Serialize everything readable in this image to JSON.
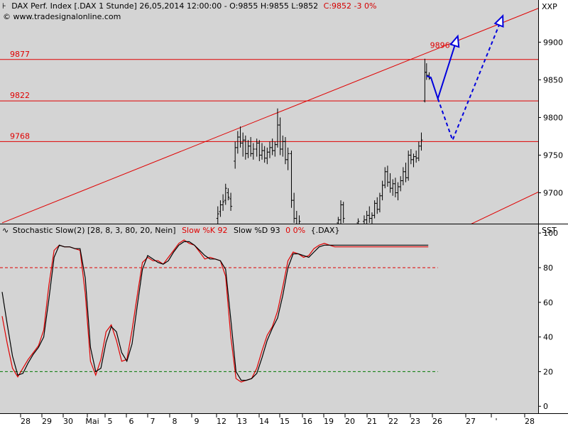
{
  "header": {
    "icon": "price-chart-icon",
    "title": "DAX Perf. Index [.DAX  1 Stunde] 26,05,2014 12:00:00 - O:9855 H:9855 L:9852",
    "change": "C:9852 -3 0%",
    "change_color": "#d40000",
    "source": "© www.tradesignalonline.com",
    "axis_code": "XXP"
  },
  "indicator_header": {
    "icon": "oscillator-icon",
    "name": "Stochastic Slow(2) [28, 8, 3, 80, 20, Nein]",
    "k_label": "Slow %K 92",
    "d_label": "Slow %D 93",
    "d_change": "0 0%",
    "instrument": "{.DAX}",
    "axis_code": "SST"
  },
  "colors": {
    "panel_bg": "#d4d4d4",
    "level_lines": "#e00000",
    "forecast": "#0000dd",
    "k_line": "#e00000",
    "d_line": "#000000",
    "upper_band": "#e00000",
    "lower_band": "#007700"
  },
  "x_axis": {
    "labels": [
      "28",
      "29",
      "30",
      "Mai",
      "5",
      "6",
      "7",
      "8",
      "9",
      "12",
      "13",
      "14",
      "15",
      "16",
      "19",
      "20",
      "21",
      "22",
      "23",
      "26",
      "27",
      "'",
      "28"
    ]
  },
  "chart_data": [
    {
      "type": "ohlc-bar",
      "title": "DAX Perf. Index [.DAX  1 Stunde]",
      "y_ticks": [
        9700,
        9750,
        9800,
        9850,
        9900
      ],
      "ylim": [
        9659,
        9956
      ],
      "grid": false,
      "levels": [
        {
          "label": "9877",
          "value": 9877
        },
        {
          "label": "9822",
          "value": 9822
        },
        {
          "label": "9768",
          "value": 9768
        }
      ],
      "peak_label": {
        "label": "9896",
        "value": 9896
      },
      "trendlines": [
        {
          "name": "upper",
          "x": [
            0,
            63
          ],
          "y": [
            9660,
            9950
          ]
        },
        {
          "name": "lower",
          "x": [
            53.5,
            63
          ],
          "y": [
            9655,
            9707
          ]
        }
      ],
      "forecast_paths": [
        {
          "style": "solid",
          "x": [
            49.0,
            49.5,
            50.3,
            52.6
          ],
          "y": [
            9855,
            9853,
            9825,
            9908
          ]
        },
        {
          "style": "dashed",
          "x": [
            50.3,
            52.0,
            57.8
          ],
          "y": [
            9825,
            9770,
            9935
          ]
        }
      ],
      "bars": [
        [
          24.9,
          9666,
          9682,
          9654,
          9672
        ],
        [
          25.2,
          9675,
          9690,
          9668,
          9684
        ],
        [
          25.5,
          9684,
          9698,
          9676,
          9688
        ],
        [
          25.8,
          9690,
          9712,
          9684,
          9706
        ],
        [
          26.1,
          9700,
          9706,
          9690,
          9694
        ],
        [
          26.4,
          9692,
          9700,
          9676,
          9682
        ],
        [
          26.9,
          9742,
          9768,
          9732,
          9760
        ],
        [
          27.2,
          9760,
          9782,
          9752,
          9774
        ],
        [
          27.5,
          9774,
          9788,
          9760,
          9766
        ],
        [
          27.8,
          9766,
          9780,
          9748,
          9770
        ],
        [
          28.1,
          9770,
          9776,
          9744,
          9752
        ],
        [
          28.4,
          9752,
          9770,
          9746,
          9762
        ],
        [
          28.7,
          9762,
          9774,
          9748,
          9752
        ],
        [
          29.0,
          9752,
          9766,
          9744,
          9758
        ],
        [
          29.4,
          9758,
          9772,
          9748,
          9766
        ],
        [
          29.7,
          9766,
          9770,
          9742,
          9750
        ],
        [
          30.0,
          9750,
          9766,
          9744,
          9756
        ],
        [
          30.3,
          9756,
          9762,
          9740,
          9746
        ],
        [
          30.6,
          9746,
          9760,
          9738,
          9754
        ],
        [
          30.9,
          9754,
          9768,
          9746,
          9760
        ],
        [
          31.2,
          9760,
          9772,
          9750,
          9756
        ],
        [
          31.5,
          9756,
          9768,
          9748,
          9764
        ],
        [
          31.8,
          9764,
          9812,
          9760,
          9790
        ],
        [
          32.1,
          9790,
          9800,
          9750,
          9758
        ],
        [
          32.4,
          9758,
          9776,
          9748,
          9768
        ],
        [
          32.7,
          9768,
          9774,
          9738,
          9744
        ],
        [
          33.0,
          9744,
          9760,
          9730,
          9752
        ],
        [
          33.4,
          9752,
          9756,
          9680,
          9690
        ],
        [
          33.7,
          9690,
          9700,
          9660,
          9666
        ],
        [
          34.0,
          9666,
          9676,
          9648,
          9658
        ],
        [
          34.3,
          9658,
          9670,
          9650,
          9662
        ],
        [
          38.8,
          9660,
          9668,
          9650,
          9664
        ],
        [
          39.1,
          9664,
          9690,
          9658,
          9684
        ],
        [
          39.4,
          9684,
          9688,
          9660,
          9666
        ],
        [
          41.1,
          9660,
          9666,
          9652,
          9662
        ],
        [
          41.8,
          9662,
          9670,
          9654,
          9664
        ],
        [
          42.1,
          9664,
          9676,
          9658,
          9670
        ],
        [
          42.4,
          9670,
          9682,
          9660,
          9666
        ],
        [
          42.7,
          9666,
          9674,
          9656,
          9670
        ],
        [
          43.0,
          9670,
          9690,
          9666,
          9686
        ],
        [
          43.3,
          9686,
          9694,
          9672,
          9678
        ],
        [
          43.6,
          9678,
          9700,
          9674,
          9696
        ],
        [
          43.9,
          9696,
          9716,
          9690,
          9710
        ],
        [
          44.2,
          9710,
          9734,
          9706,
          9728
        ],
        [
          44.5,
          9728,
          9736,
          9708,
          9714
        ],
        [
          44.8,
          9714,
          9726,
          9700,
          9706
        ],
        [
          45.1,
          9706,
          9718,
          9696,
          9712
        ],
        [
          45.4,
          9712,
          9720,
          9694,
          9700
        ],
        [
          45.7,
          9700,
          9714,
          9690,
          9708
        ],
        [
          46.0,
          9708,
          9722,
          9702,
          9716
        ],
        [
          46.3,
          9716,
          9734,
          9710,
          9728
        ],
        [
          46.6,
          9728,
          9740,
          9714,
          9720
        ],
        [
          46.9,
          9720,
          9756,
          9716,
          9750
        ],
        [
          47.2,
          9750,
          9758,
          9738,
          9744
        ],
        [
          47.5,
          9744,
          9752,
          9734,
          9748
        ],
        [
          47.8,
          9748,
          9756,
          9740,
          9746
        ],
        [
          48.1,
          9746,
          9768,
          9742,
          9762
        ],
        [
          48.4,
          9762,
          9780,
          9756,
          9770
        ],
        [
          48.8,
          9822,
          9878,
          9820,
          9860
        ],
        [
          49.0,
          9860,
          9872,
          9850,
          9856
        ],
        [
          49.3,
          9856,
          9860,
          9850,
          9852
        ]
      ]
    },
    {
      "type": "line",
      "title": "Stochastic Slow(2) [28, 8, 3, 80, 20, Nein]",
      "y_ticks": [
        0,
        20,
        40,
        60,
        80,
        100
      ],
      "ylim": [
        -4,
        105
      ],
      "grid": false,
      "bands": [
        {
          "value": 80,
          "style": "dashed",
          "color": "#e00000"
        },
        {
          "value": 20,
          "style": "dashed",
          "color": "#007700"
        }
      ],
      "series": [
        {
          "name": "Slow %K",
          "color": "#e00000",
          "x": [
            0,
            0.6,
            1.2,
            1.8,
            2.4,
            3,
            3.6,
            4.2,
            4.8,
            5.4,
            6,
            6.6,
            7.2,
            7.8,
            8.4,
            9,
            9.6,
            10.2,
            10.8,
            11.4,
            12,
            12.6,
            13.2,
            13.8,
            14.4,
            15,
            15.6,
            16.2,
            16.8,
            17.4,
            18,
            18.6,
            19.2,
            19.8,
            20.4,
            21,
            21.6,
            22.2,
            22.8,
            23.4,
            24,
            24.6,
            25.2,
            25.8,
            26.4,
            27,
            27.6,
            28.2,
            28.8,
            29.4,
            30,
            30.6,
            31.2,
            31.8,
            32.4,
            33,
            33.6,
            34.2,
            34.8,
            35.4,
            36,
            36.6,
            37.2,
            37.8,
            38.4,
            39,
            39.6,
            40.2,
            40.8,
            41.4,
            42,
            42.6,
            43.2,
            43.8,
            44.4,
            45,
            45.6,
            46.2,
            46.8,
            47.4,
            48,
            48.6,
            49.2
          ],
          "y": [
            52,
            36,
            22,
            17,
            22,
            27,
            31,
            35,
            44,
            70,
            90,
            93,
            92,
            92,
            91,
            90,
            65,
            26,
            18,
            27,
            43,
            47,
            38,
            26,
            27,
            44,
            64,
            83,
            86,
            84,
            84,
            82,
            86,
            90,
            94,
            96,
            94,
            93,
            89,
            85,
            86,
            85,
            84,
            75,
            40,
            16,
            14,
            15,
            16,
            22,
            32,
            41,
            46,
            55,
            69,
            84,
            89,
            88,
            86,
            87,
            91,
            93,
            94,
            93,
            92,
            92,
            92,
            92,
            92,
            92,
            92,
            92,
            92,
            92,
            92,
            92,
            92,
            92,
            92,
            92,
            92,
            92,
            92
          ]
        },
        {
          "name": "Slow %D",
          "color": "#000000",
          "x": [
            0,
            0.6,
            1.2,
            1.8,
            2.4,
            3,
            3.6,
            4.2,
            4.8,
            5.4,
            6,
            6.6,
            7.2,
            7.8,
            8.4,
            9,
            9.6,
            10.2,
            10.8,
            11.4,
            12,
            12.6,
            13.2,
            13.8,
            14.4,
            15,
            15.6,
            16.2,
            16.8,
            17.4,
            18,
            18.6,
            19.2,
            19.8,
            20.4,
            21,
            21.6,
            22.2,
            22.8,
            23.4,
            24,
            24.6,
            25.2,
            25.8,
            26.4,
            27,
            27.6,
            28.2,
            28.8,
            29.4,
            30,
            30.6,
            31.2,
            31.8,
            32.4,
            33,
            33.6,
            34.2,
            34.8,
            35.4,
            36,
            36.6,
            37.2,
            37.8,
            38.4,
            39,
            39.6,
            40.2,
            40.8,
            41.4,
            42,
            42.6,
            43.2,
            43.8,
            44.4,
            45,
            45.6,
            46.2,
            46.8,
            47.4,
            48,
            48.6,
            49.2
          ],
          "y": [
            66,
            47,
            29,
            18,
            19,
            25,
            30,
            34,
            40,
            62,
            86,
            93,
            92,
            92,
            91,
            91,
            74,
            34,
            20,
            22,
            37,
            46,
            43,
            31,
            26,
            36,
            58,
            79,
            87,
            85,
            83,
            82,
            84,
            89,
            93,
            95,
            95,
            93,
            90,
            87,
            85,
            85,
            84,
            79,
            50,
            20,
            15,
            15,
            16,
            19,
            28,
            38,
            45,
            51,
            64,
            80,
            88,
            88,
            87,
            86,
            89,
            92,
            93,
            93,
            93,
            93,
            93,
            93,
            93,
            93,
            93,
            93,
            93,
            93,
            93,
            93,
            93,
            93,
            93,
            93,
            93,
            93,
            93
          ]
        }
      ]
    }
  ]
}
